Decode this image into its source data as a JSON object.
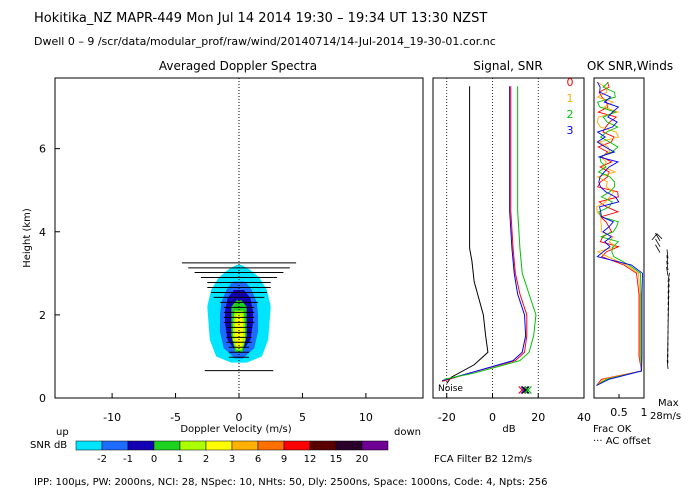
{
  "header": {
    "line1": "Hokitika_NZ  MAPR-449  Mon Jul 14 2014 19:30 – 19:34 UT 13:30 NZST",
    "line2": "Dwell  0 –  9   /scr/data/modular_prof/raw/wind/20140714/14-Jul-2014_19-30-01.cor.nc"
  },
  "footer": {
    "params": "IPP: 100µs,  PW: 2000ns,  NCI:  28,  NSpec: 10, NHts: 50,  Dly: 2500ns,  Space: 1000ns,  Code: 4,  Npts: 256",
    "filter": "FCA Filter B2 12m/s"
  },
  "colors": {
    "snr_scale": [
      "#00e5ff",
      "#1e6bff",
      "#1400b4",
      "#1fd21f",
      "#aaff00",
      "#ffff00",
      "#ffb000",
      "#ff7000",
      "#ff0000",
      "#5a0000",
      "#2a002a",
      "#6e0096"
    ]
  },
  "chart_data": [
    {
      "type": "heatmap",
      "title": "Averaged Doppler Spectra",
      "xlabel": "Doppler Velocity (m/s)",
      "ylabel": "Height (km)",
      "xlim": [
        -14.5,
        14.5
      ],
      "ylim": [
        0,
        7.7
      ],
      "xticks": [
        -10,
        -5,
        0,
        5,
        10
      ],
      "yticks": [
        0,
        2,
        4,
        6
      ],
      "x_left_label": "up",
      "x_right_label": "down",
      "colorbar": {
        "label": "SNR dB",
        "ticks": [
          "-2",
          "-1",
          "0",
          "1",
          "2",
          "3",
          "6",
          "9",
          "12",
          "15",
          "20"
        ]
      },
      "spread_bars": [
        {
          "h": 3.25,
          "lo": -4.5,
          "hi": 4.5
        },
        {
          "h": 3.13,
          "lo": -4.0,
          "hi": 4.0
        },
        {
          "h": 3.02,
          "lo": -3.5,
          "hi": 3.5
        },
        {
          "h": 2.9,
          "lo": -3.0,
          "hi": 3.0
        },
        {
          "h": 2.78,
          "lo": -2.5,
          "hi": 2.5
        },
        {
          "h": 2.66,
          "lo": -2.5,
          "hi": 2.5
        },
        {
          "h": 2.54,
          "lo": -2.2,
          "hi": 2.2
        },
        {
          "h": 2.42,
          "lo": -2.0,
          "hi": 2.0
        },
        {
          "h": 2.3,
          "lo": -1.5,
          "hi": 1.5
        },
        {
          "h": 2.18,
          "lo": -1.2,
          "hi": 1.2
        },
        {
          "h": 2.06,
          "lo": -1.2,
          "hi": 1.2
        },
        {
          "h": 1.94,
          "lo": -1.2,
          "hi": 1.2
        },
        {
          "h": 1.82,
          "lo": -1.2,
          "hi": 1.2
        },
        {
          "h": 1.7,
          "lo": -1.0,
          "hi": 1.0
        },
        {
          "h": 1.58,
          "lo": -1.0,
          "hi": 1.0
        },
        {
          "h": 1.46,
          "lo": -1.0,
          "hi": 1.0
        },
        {
          "h": 1.34,
          "lo": -1.0,
          "hi": 1.0
        },
        {
          "h": 1.22,
          "lo": -0.8,
          "hi": 0.8
        },
        {
          "h": 1.1,
          "lo": -0.8,
          "hi": 0.8
        },
        {
          "h": 0.98,
          "lo": -0.8,
          "hi": 0.8
        },
        {
          "h": 0.66,
          "lo": -2.7,
          "hi": 2.7
        }
      ]
    },
    {
      "type": "line",
      "title": "Signal, SNR",
      "xlabel": "dB",
      "xlim": [
        -26,
        40
      ],
      "xticks": [
        -20,
        0,
        20,
        40
      ],
      "ylim": [
        0,
        7.7
      ],
      "annotation": "Noise",
      "series": [
        {
          "color": "#000000",
          "points": [
            [
              -10,
              7.5
            ],
            [
              -10,
              3.6
            ],
            [
              -9,
              3.3
            ],
            [
              -8,
              2.8
            ],
            [
              -6,
              2.4
            ],
            [
              -4,
              2.0
            ],
            [
              -3,
              1.5
            ],
            [
              -2,
              1.1
            ],
            [
              -8,
              0.8
            ],
            [
              -18,
              0.5
            ],
            [
              -20,
              0.35
            ]
          ]
        },
        {
          "color": "#ff0000",
          "points": [
            [
              8,
              7.5
            ],
            [
              8,
              4.5
            ],
            [
              9,
              3.6
            ],
            [
              10,
              3.0
            ],
            [
              12,
              2.5
            ],
            [
              15,
              2.0
            ],
            [
              15,
              1.5
            ],
            [
              14,
              1.1
            ],
            [
              10,
              0.9
            ],
            [
              -10,
              0.6
            ],
            [
              -22,
              0.4
            ]
          ]
        },
        {
          "color": "#0000ff",
          "points": [
            [
              7.5,
              7.5
            ],
            [
              7.5,
              4.5
            ],
            [
              8.5,
              3.6
            ],
            [
              9.5,
              3.0
            ],
            [
              11,
              2.5
            ],
            [
              14,
              2.0
            ],
            [
              14.5,
              1.5
            ],
            [
              13,
              1.1
            ],
            [
              9,
              0.9
            ],
            [
              -10,
              0.6
            ],
            [
              -22,
              0.42
            ]
          ]
        },
        {
          "color": "#00c000",
          "points": [
            [
              11,
              7.5
            ],
            [
              11,
              4.5
            ],
            [
              12,
              3.6
            ],
            [
              13,
              3.0
            ],
            [
              16,
              2.5
            ],
            [
              19,
              2.0
            ],
            [
              18,
              1.5
            ],
            [
              16,
              1.1
            ],
            [
              12,
              0.9
            ],
            [
              -8,
              0.6
            ],
            [
              -21,
              0.45
            ]
          ]
        }
      ],
      "noise_points": [
        {
          "x": 13,
          "color": "#ff0000"
        },
        {
          "x": 14,
          "color": "#0000ff"
        },
        {
          "x": 14.5,
          "color": "#000000"
        },
        {
          "x": 15.5,
          "color": "#00c000"
        }
      ]
    },
    {
      "type": "line",
      "title": "OK  SNR,Winds",
      "xlabel": "Frac OK",
      "xticks": [
        "0.5",
        "1"
      ],
      "xlim": [
        0,
        1
      ],
      "ylim": [
        0,
        7.7
      ],
      "legend": [
        {
          "label": "0",
          "color": "#ff0000"
        },
        {
          "label": "1",
          "color": "#ffaa00"
        },
        {
          "label": "2",
          "color": "#00c000"
        },
        {
          "label": "3",
          "color": "#0000ff"
        }
      ],
      "note": "··· AC offset",
      "max_label": "Max",
      "max_value": "28m/s"
    }
  ]
}
